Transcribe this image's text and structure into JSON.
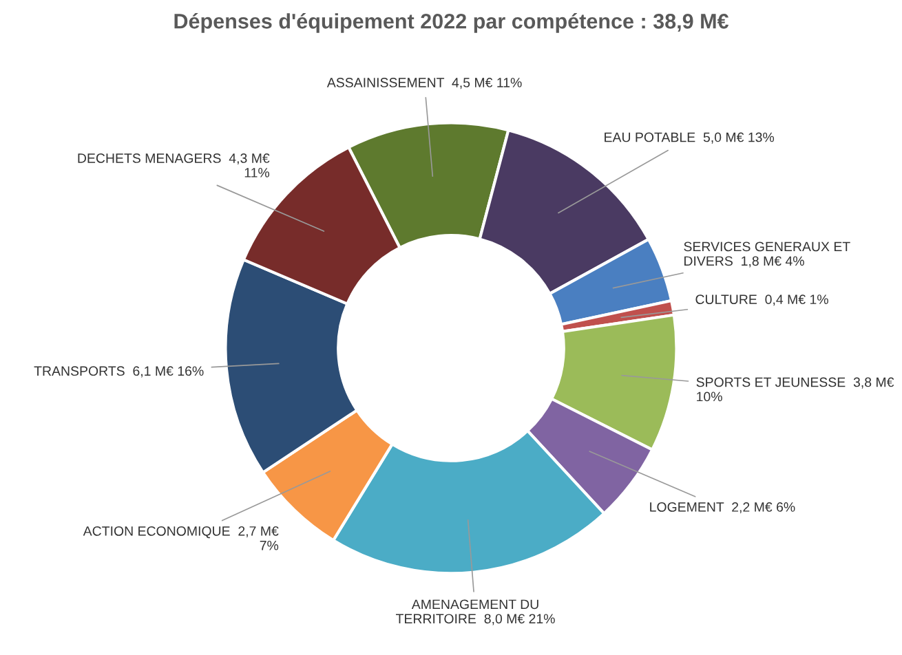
{
  "chart_data": {
    "type": "donut",
    "title": "Dépenses d'équipement 2022 par compétence : 38,9 M€",
    "categories": [
      "ASSAINISSEMENT",
      "EAU POTABLE",
      "SERVICES GENERAUX ET\nDIVERS",
      "CULTURE",
      "SPORTS ET JEUNESSE",
      "LOGEMENT",
      "AMENAGEMENT DU\nTERRITOIRE",
      "ACTION ECONOMIQUE",
      "TRANSPORTS",
      "DECHETS MENAGERS"
    ],
    "values": [
      4.5,
      5.0,
      1.8,
      0.4,
      3.8,
      2.2,
      8.0,
      2.7,
      6.1,
      4.3
    ],
    "value_labels": [
      "4,5 M€ 11%",
      "5,0 M€ 13%",
      "1,8 M€ 4%",
      "0,4 M€ 1%",
      "3,8 M€\n10%",
      "2,2 M€ 6%",
      "8,0 M€ 21%",
      "2,7 M€\n7%",
      "6,1 M€ 16%",
      "4,3 M€\n11%"
    ],
    "colors": [
      "#5e7a2e",
      "#4a3a62",
      "#4a7fc1",
      "#c0504d",
      "#9bbb59",
      "#8064a2",
      "#4bacc6",
      "#f79646",
      "#2c4d75",
      "#772c2a"
    ],
    "legend": false
  }
}
